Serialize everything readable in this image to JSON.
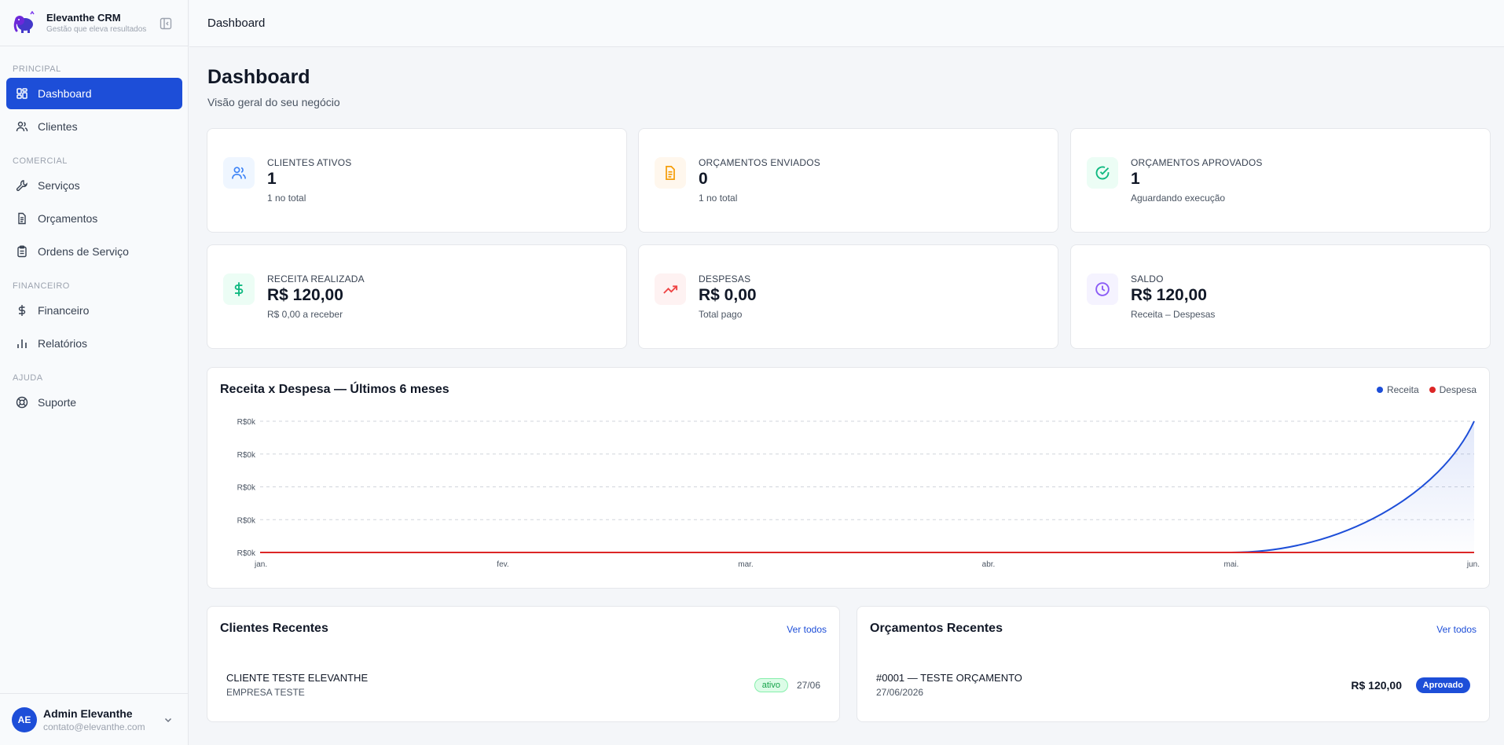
{
  "brand": {
    "name": "Elevanthe CRM",
    "tagline": "Gestão que eleva resultados",
    "logo_icon": "elephant-icon"
  },
  "sidebar": {
    "sections": [
      {
        "title": "PRINCIPAL",
        "items": [
          {
            "label": "Dashboard",
            "icon": "grid-icon",
            "active": true
          },
          {
            "label": "Clientes",
            "icon": "users-icon"
          }
        ]
      },
      {
        "title": "COMERCIAL",
        "items": [
          {
            "label": "Serviços",
            "icon": "wrench-icon"
          },
          {
            "label": "Orçamentos",
            "icon": "document-icon"
          },
          {
            "label": "Ordens de Serviço",
            "icon": "clipboard-icon"
          }
        ]
      },
      {
        "title": "FINANCEIRO",
        "items": [
          {
            "label": "Financeiro",
            "icon": "dollar-icon"
          },
          {
            "label": "Relatórios",
            "icon": "bar-chart-icon"
          }
        ]
      },
      {
        "title": "AJUDA",
        "items": [
          {
            "label": "Suporte",
            "icon": "lifebuoy-icon"
          }
        ]
      }
    ]
  },
  "user": {
    "initials": "AE",
    "name": "Admin Elevanthe",
    "email": "contato@elevanthe.com"
  },
  "topbar": {
    "breadcrumb": "Dashboard"
  },
  "page": {
    "title": "Dashboard",
    "subtitle": "Visão geral do seu negócio"
  },
  "stats": [
    {
      "label": "CLIENTES ATIVOS",
      "value": "1",
      "note": "1 no total",
      "icon": "users-icon",
      "color": "#3b82f6",
      "bg": "#eff6ff"
    },
    {
      "label": "ORÇAMENTOS ENVIADOS",
      "value": "0",
      "note": "1 no total",
      "icon": "document-icon",
      "color": "#f59e0b",
      "bg": "#fff7ed"
    },
    {
      "label": "ORÇAMENTOS APROVADOS",
      "value": "1",
      "note": "Aguardando execução",
      "icon": "check-circle-icon",
      "color": "#10b981",
      "bg": "#ecfdf5"
    },
    {
      "label": "RECEITA REALIZADA",
      "value": "R$ 120,00",
      "note": "R$ 0,00 a receber",
      "icon": "dollar-icon",
      "color": "#10b981",
      "bg": "#ecfdf5"
    },
    {
      "label": "DESPESAS",
      "value": "R$ 0,00",
      "note": "Total pago",
      "icon": "trending-up-icon",
      "color": "#ef4444",
      "bg": "#fef2f2"
    },
    {
      "label": "SALDO",
      "value": "R$ 120,00",
      "note": "Receita – Despesas",
      "icon": "clock-icon",
      "color": "#8b5cf6",
      "bg": "#f5f3ff"
    }
  ],
  "chart_data": {
    "type": "area",
    "title": "Receita x Despesa — Últimos 6 meses",
    "categories": [
      "jan.",
      "fev.",
      "mar.",
      "abr.",
      "mai.",
      "jun."
    ],
    "y_ticks": [
      "R$0k",
      "R$0k",
      "R$0k",
      "R$0k",
      "R$0k"
    ],
    "ylim": [
      0,
      120
    ],
    "grid": true,
    "legend_position": "top-right",
    "series": [
      {
        "name": "Receita",
        "values": [
          0,
          0,
          0,
          0,
          0,
          120
        ],
        "color": "#1d4ed8"
      },
      {
        "name": "Despesa",
        "values": [
          0,
          0,
          0,
          0,
          0,
          0
        ],
        "color": "#dc2626"
      }
    ]
  },
  "recent_clients": {
    "title": "Clientes Recentes",
    "see_all": "Ver todos",
    "items": [
      {
        "name": "CLIENTE TESTE ELEVANTHE",
        "company": "EMPRESA TESTE",
        "status": "ativo",
        "date": "27/06"
      }
    ]
  },
  "recent_quotes": {
    "title": "Orçamentos Recentes",
    "see_all": "Ver todos",
    "items": [
      {
        "title": "#0001 — TESTE ORÇAMENTO",
        "date": "27/06/2026",
        "amount": "R$ 120,00",
        "status": "Aprovado"
      }
    ]
  }
}
